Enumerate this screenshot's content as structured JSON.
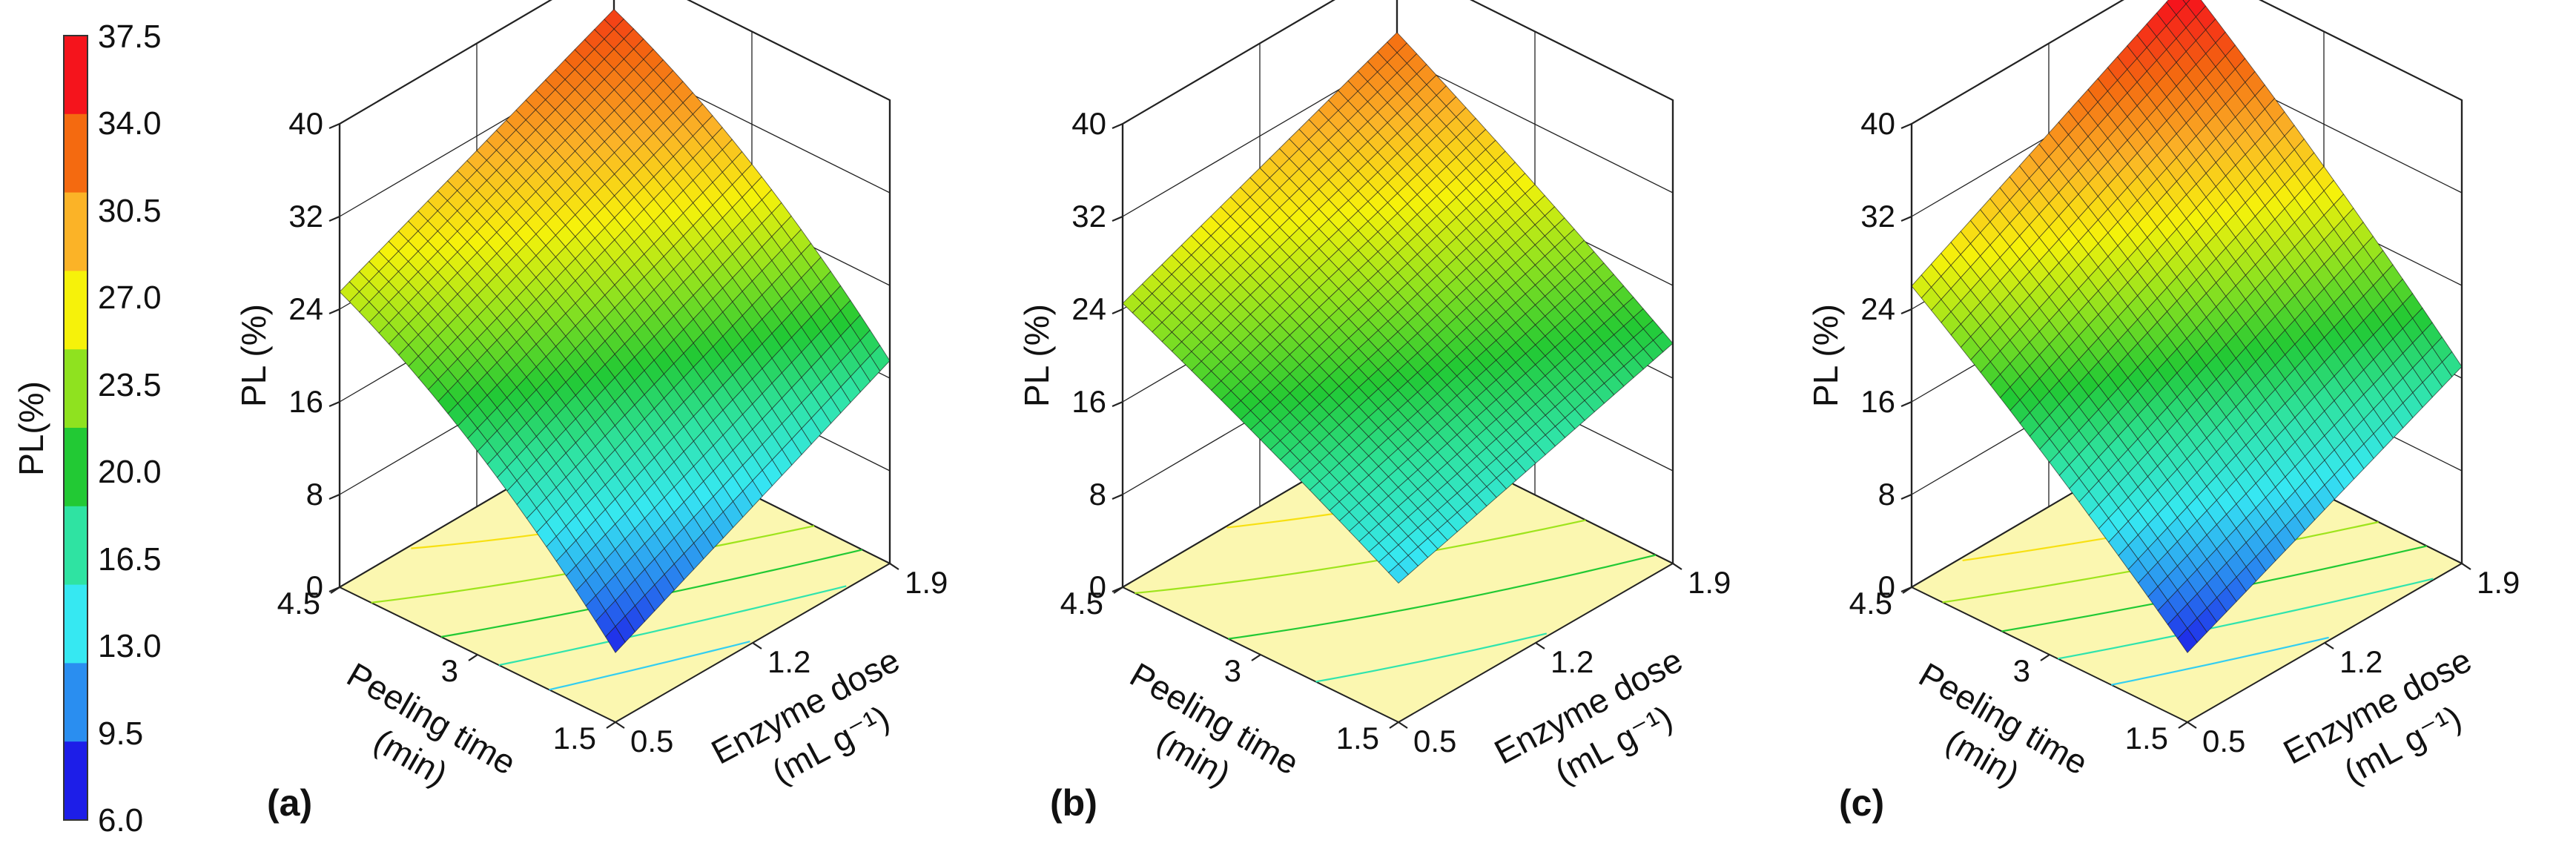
{
  "colorbar": {
    "title": "PL(%)",
    "ticks": [
      "37.5",
      "34.0",
      "30.5",
      "27.0",
      "23.5",
      "20.0",
      "16.5",
      "13.0",
      "9.5",
      "6.0"
    ],
    "colors": [
      "#f5141c",
      "#f46a10",
      "#fbb327",
      "#f6f20a",
      "#8fe21f",
      "#22c934",
      "#2fe3a2",
      "#36e8f2",
      "#2a8ef0",
      "#1d1ee8"
    ]
  },
  "chart_data": [
    {
      "type": "surface3d",
      "panel_label": "(a)",
      "zlabel": "PL (%)",
      "xlabel": "Peeling time",
      "xlabel_unit": "(min)",
      "ylabel": "Enzyme dose",
      "ylabel_unit": "(mL g⁻¹)",
      "x_ticks": [
        "4.5",
        "3",
        "1.5"
      ],
      "y_ticks": [
        "0.5",
        "1.2",
        "1.9"
      ],
      "z_ticks": [
        "0",
        "8",
        "16",
        "24",
        "32",
        "40"
      ],
      "x_range": [
        1.5,
        4.5
      ],
      "y_range": [
        0.5,
        1.9
      ],
      "z_range": [
        0,
        40
      ],
      "surface_corners": {
        "t4.5_e0.5": 25.5,
        "t4.5_e1.9": 36.0,
        "t1.5_e0.5": 6.0,
        "t1.5_e1.9": 17.5
      },
      "curvature": 3.0
    },
    {
      "type": "surface3d",
      "panel_label": "(b)",
      "zlabel": "PL (%)",
      "xlabel": "Peeling time",
      "xlabel_unit": "(min)",
      "ylabel": "Enzyme dose",
      "ylabel_unit": "(mL g⁻¹)",
      "x_ticks": [
        "4.5",
        "3",
        "1.5"
      ],
      "y_ticks": [
        "0.5",
        "1.2",
        "1.9"
      ],
      "z_ticks": [
        "0",
        "8",
        "16",
        "24",
        "32",
        "40"
      ],
      "x_range": [
        1.5,
        4.5
      ],
      "y_range": [
        0.5,
        1.9
      ],
      "z_range": [
        0,
        40
      ],
      "surface_corners": {
        "t4.5_e0.5": 24.5,
        "t4.5_e1.9": 34.0,
        "t1.5_e0.5": 12.0,
        "t1.5_e1.9": 19.0
      },
      "curvature": 0.5
    },
    {
      "type": "surface3d",
      "panel_label": "(c)",
      "zlabel": "PL (%)",
      "xlabel": "Peeling time",
      "xlabel_unit": "(min)",
      "ylabel": "Enzyme dose",
      "ylabel_unit": "(mL g⁻¹)",
      "x_ticks": [
        "4.5",
        "3",
        "1.5"
      ],
      "y_ticks": [
        "0.5",
        "1.2",
        "1.9"
      ],
      "z_ticks": [
        "0",
        "8",
        "16",
        "24",
        "32",
        "40"
      ],
      "x_range": [
        1.5,
        4.5
      ],
      "y_range": [
        0.5,
        1.9
      ],
      "z_range": [
        0,
        40
      ],
      "surface_corners": {
        "t4.5_e0.5": 26.0,
        "t4.5_e1.9": 38.5,
        "t1.5_e0.5": 6.0,
        "t1.5_e1.9": 17.0
      },
      "curvature": 1.0
    }
  ]
}
